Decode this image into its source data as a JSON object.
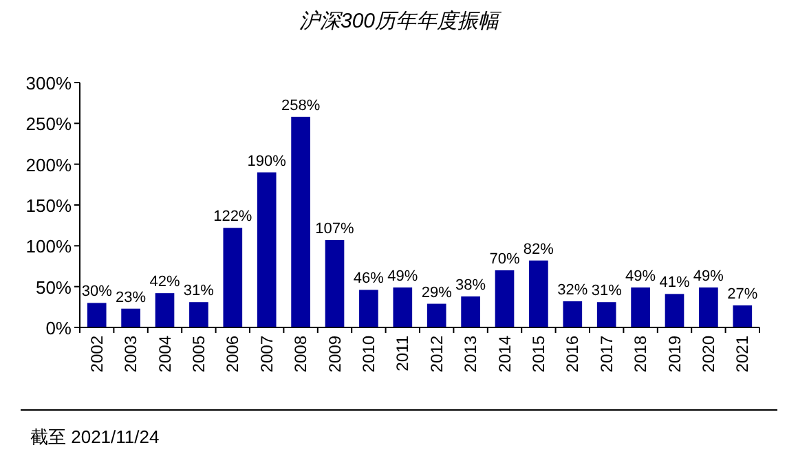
{
  "chart_data": {
    "type": "bar",
    "title": "沪深300历年年度振幅",
    "categories": [
      "2002",
      "2003",
      "2004",
      "2005",
      "2006",
      "2007",
      "2008",
      "2009",
      "2010",
      "2011",
      "2012",
      "2013",
      "2014",
      "2015",
      "2016",
      "2017",
      "2018",
      "2019",
      "2020",
      "2021"
    ],
    "values": [
      30,
      23,
      42,
      31,
      122,
      190,
      258,
      107,
      46,
      49,
      29,
      38,
      70,
      82,
      32,
      31,
      49,
      41,
      49,
      27
    ],
    "value_labels": [
      "30%",
      "23%",
      "42%",
      "31%",
      "122%",
      "190%",
      "258%",
      "107%",
      "46%",
      "49%",
      "29%",
      "38%",
      "70%",
      "82%",
      "32%",
      "31%",
      "49%",
      "41%",
      "49%",
      "27%"
    ],
    "color": "#0000a0",
    "ylim": [
      0,
      300
    ],
    "yticks": [
      {
        "value": 0,
        "label": "0%"
      },
      {
        "value": 50,
        "label": "50%"
      },
      {
        "value": 100,
        "label": "100%"
      },
      {
        "value": 150,
        "label": "150%"
      },
      {
        "value": 200,
        "label": "200%"
      },
      {
        "value": 250,
        "label": "250%"
      },
      {
        "value": 300,
        "label": "300%"
      }
    ],
    "grid": false,
    "annotations": [
      "截至 2021/11/24"
    ]
  }
}
